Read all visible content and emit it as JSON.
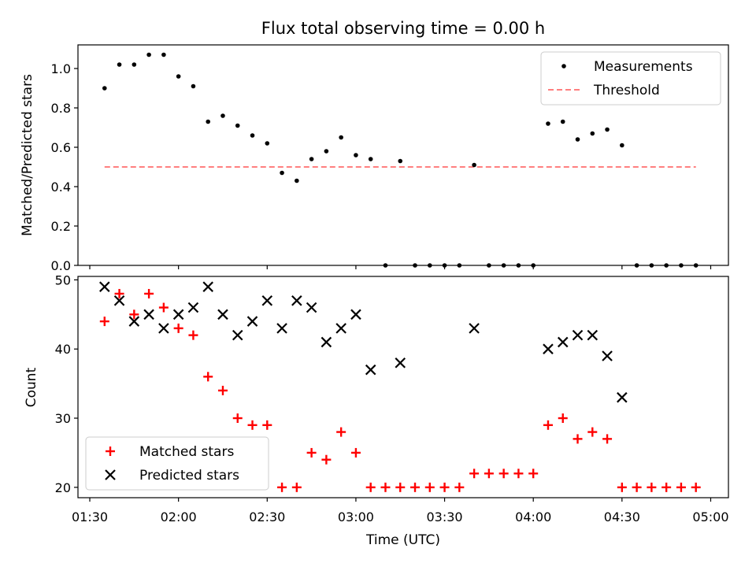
{
  "title": "Flux total observing time = 0.00 h",
  "chart_data": [
    {
      "type": "scatter",
      "ylabel": "Matched/Predicted stars",
      "ylim": [
        0,
        1.12
      ],
      "yticks": [
        "0.0",
        "0.2",
        "0.4",
        "0.6",
        "0.8",
        "1.0"
      ],
      "legend": {
        "position": "top-right",
        "entries": [
          {
            "label": "Measurements",
            "marker": "dot",
            "color": "#000000"
          },
          {
            "label": "Threshold",
            "marker": "dashed-line",
            "color": "#ff7f7f"
          }
        ]
      },
      "threshold": {
        "value": 0.5,
        "x_start": "01:35",
        "x_end": "04:55",
        "color": "#ff7f7f"
      },
      "x": [
        "01:35",
        "01:40",
        "01:45",
        "01:50",
        "01:55",
        "02:00",
        "02:05",
        "02:10",
        "02:15",
        "02:20",
        "02:25",
        "02:30",
        "02:35",
        "02:40",
        "02:45",
        "02:50",
        "02:55",
        "03:00",
        "03:05",
        "03:10",
        "03:15",
        "03:20",
        "03:25",
        "03:30",
        "03:35",
        "03:40",
        "03:45",
        "03:50",
        "03:55",
        "04:00",
        "04:05",
        "04:10",
        "04:15",
        "04:20",
        "04:25",
        "04:30",
        "04:35",
        "04:40",
        "04:45",
        "04:50",
        "04:55"
      ],
      "values": [
        0.9,
        1.02,
        1.02,
        1.07,
        1.07,
        0.96,
        0.91,
        0.73,
        0.76,
        0.71,
        0.66,
        0.62,
        0.47,
        0.43,
        0.54,
        0.58,
        0.65,
        0.56,
        0.54,
        0.0,
        0.53,
        0.0,
        0.0,
        0.0,
        0.0,
        0.51,
        0.0,
        0.0,
        0.0,
        0.0,
        0.72,
        0.73,
        0.64,
        0.67,
        0.69,
        0.61,
        0.0,
        0.0,
        0.0,
        0.0,
        0.0
      ]
    },
    {
      "type": "scatter",
      "xlabel": "Time (UTC)",
      "ylabel": "Count",
      "ylim": [
        18.5,
        50.5
      ],
      "yticks": [
        "20",
        "30",
        "40",
        "50"
      ],
      "xticks": [
        "01:30",
        "02:00",
        "02:30",
        "03:00",
        "03:30",
        "04:00",
        "04:30",
        "05:00"
      ],
      "legend": {
        "position": "bottom-left",
        "entries": [
          {
            "label": "Matched stars",
            "marker": "plus",
            "color": "#ff0000"
          },
          {
            "label": "Predicted stars",
            "marker": "x",
            "color": "#000000"
          }
        ]
      },
      "series": [
        {
          "name": "Matched stars",
          "color": "#ff0000",
          "marker": "plus",
          "points": [
            [
              "01:35",
              44
            ],
            [
              "01:40",
              48
            ],
            [
              "01:45",
              45
            ],
            [
              "01:50",
              48
            ],
            [
              "01:55",
              46
            ],
            [
              "02:00",
              43
            ],
            [
              "02:05",
              42
            ],
            [
              "02:10",
              36
            ],
            [
              "02:15",
              34
            ],
            [
              "02:20",
              30
            ],
            [
              "02:25",
              29
            ],
            [
              "02:30",
              29
            ],
            [
              "02:35",
              20
            ],
            [
              "02:40",
              20
            ],
            [
              "02:45",
              25
            ],
            [
              "02:50",
              24
            ],
            [
              "02:55",
              28
            ],
            [
              "03:00",
              25
            ],
            [
              "03:05",
              20
            ],
            [
              "03:10",
              20
            ],
            [
              "03:15",
              20
            ],
            [
              "03:20",
              20
            ],
            [
              "03:25",
              20
            ],
            [
              "03:30",
              20
            ],
            [
              "03:35",
              20
            ],
            [
              "03:40",
              22
            ],
            [
              "03:45",
              22
            ],
            [
              "03:50",
              22
            ],
            [
              "03:55",
              22
            ],
            [
              "04:00",
              22
            ],
            [
              "04:05",
              29
            ],
            [
              "04:10",
              30
            ],
            [
              "04:15",
              27
            ],
            [
              "04:20",
              28
            ],
            [
              "04:25",
              27
            ],
            [
              "04:30",
              20
            ],
            [
              "04:35",
              20
            ],
            [
              "04:40",
              20
            ],
            [
              "04:45",
              20
            ],
            [
              "04:50",
              20
            ],
            [
              "04:55",
              20
            ]
          ]
        },
        {
          "name": "Predicted stars",
          "color": "#000000",
          "marker": "x",
          "points": [
            [
              "01:35",
              49
            ],
            [
              "01:40",
              47
            ],
            [
              "01:45",
              44
            ],
            [
              "01:50",
              45
            ],
            [
              "01:55",
              43
            ],
            [
              "02:00",
              45
            ],
            [
              "02:05",
              46
            ],
            [
              "02:10",
              49
            ],
            [
              "02:15",
              45
            ],
            [
              "02:20",
              42
            ],
            [
              "02:25",
              44
            ],
            [
              "02:30",
              47
            ],
            [
              "02:35",
              43
            ],
            [
              "02:40",
              47
            ],
            [
              "02:45",
              46
            ],
            [
              "02:50",
              41
            ],
            [
              "02:55",
              43
            ],
            [
              "03:00",
              45
            ],
            [
              "03:05",
              37
            ],
            [
              "03:15",
              38
            ],
            [
              "03:40",
              43
            ],
            [
              "04:05",
              40
            ],
            [
              "04:10",
              41
            ],
            [
              "04:15",
              42
            ],
            [
              "04:20",
              42
            ],
            [
              "04:25",
              39
            ],
            [
              "04:30",
              33
            ]
          ]
        }
      ]
    }
  ]
}
